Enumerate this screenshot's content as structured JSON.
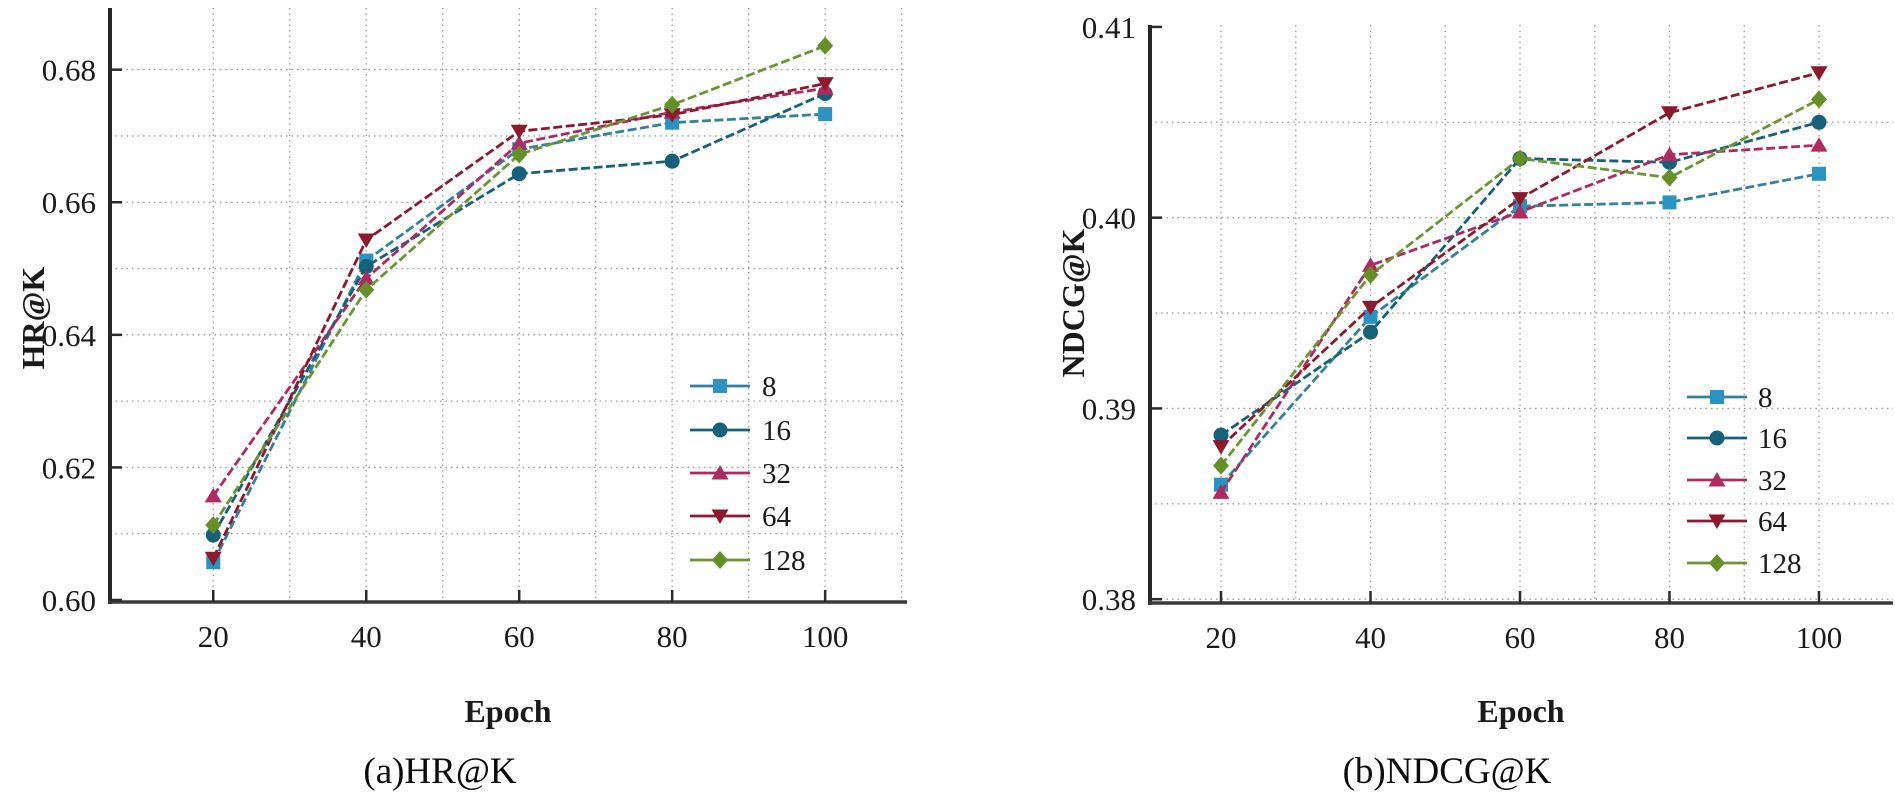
{
  "figure": {
    "background": "#ffffff",
    "text_color": "#1a1a1a",
    "grid_color": "#9a9a9a",
    "axis_color": "#3a3a3a"
  },
  "chart_data": [
    {
      "id": "hr",
      "type": "line",
      "caption": "(a)HR@K",
      "xlabel": "Epoch",
      "ylabel": "HR@K",
      "x": [
        20,
        40,
        60,
        80,
        100
      ],
      "xlim": [
        6.5,
        110.7
      ],
      "ylim": [
        0.5997,
        0.6893
      ],
      "xticks": [
        20,
        40,
        60,
        80,
        100
      ],
      "x_gridlines": [
        20,
        30,
        40,
        50,
        60,
        70,
        80,
        90,
        100,
        110
      ],
      "yticks": [
        {
          "value": 0.6,
          "label": "0.60"
        },
        {
          "value": 0.62,
          "label": "0.62"
        },
        {
          "value": 0.64,
          "label": "0.64"
        },
        {
          "value": 0.66,
          "label": "0.66"
        },
        {
          "value": 0.68,
          "label": "0.68"
        }
      ],
      "y_gridlines": [
        0.61,
        0.62,
        0.63,
        0.64,
        0.65,
        0.66,
        0.67,
        0.68
      ],
      "grid": true,
      "legend_position": "inside lower right",
      "series": [
        {
          "name": "8",
          "marker": "square",
          "color": "#2a93c1",
          "line_color": "#33809f",
          "values": [
            0.6057,
            0.6512,
            0.668,
            0.672,
            0.6733
          ]
        },
        {
          "name": "16",
          "marker": "circle",
          "color": "#16607a",
          "line_color": "#16607a",
          "values": [
            0.6098,
            0.6503,
            0.6643,
            0.6662,
            0.6764
          ]
        },
        {
          "name": "32",
          "marker": "triangle-up",
          "color": "#ad2b61",
          "line_color": "#ad2b61",
          "values": [
            0.6157,
            0.6485,
            0.6689,
            0.6736,
            0.6772
          ]
        },
        {
          "name": "64",
          "marker": "triangle-down",
          "color": "#8c1a2c",
          "line_color": "#8c1a2c",
          "values": [
            0.6063,
            0.6543,
            0.6707,
            0.6732,
            0.6779
          ]
        },
        {
          "name": "128",
          "marker": "diamond",
          "color": "#649027",
          "line_color": "#6b9432",
          "values": [
            0.6113,
            0.6468,
            0.6672,
            0.6747,
            0.6836
          ]
        }
      ]
    },
    {
      "id": "ndcg",
      "type": "line",
      "caption": "(b)NDCG@K",
      "xlabel": "Epoch",
      "ylabel": "NDCG@K",
      "x": [
        20,
        40,
        60,
        80,
        100
      ],
      "xlim": [
        10.5,
        109.9
      ],
      "ylim": [
        0.3798,
        0.4101
      ],
      "xticks": [
        20,
        40,
        60,
        80,
        100
      ],
      "x_gridlines": [
        20,
        30,
        40,
        50,
        60,
        70,
        80,
        90,
        100
      ],
      "yticks": [
        {
          "value": 0.38,
          "label": "0.38"
        },
        {
          "value": 0.39,
          "label": "0.39"
        },
        {
          "value": 0.4,
          "label": "0.40"
        },
        {
          "value": 0.41,
          "label": "0.41"
        }
      ],
      "y_gridlines": [
        0.38,
        0.385,
        0.39,
        0.395,
        0.4,
        0.405
      ],
      "grid": true,
      "legend_position": "inside lower right",
      "series": [
        {
          "name": "8",
          "marker": "square",
          "color": "#2a93c1",
          "line_color": "#33809f",
          "values": [
            0.386,
            0.3948,
            0.4006,
            0.4008,
            0.4023
          ]
        },
        {
          "name": "16",
          "marker": "circle",
          "color": "#16607a",
          "line_color": "#16607a",
          "values": [
            0.3886,
            0.394,
            0.4031,
            0.4029,
            0.405
          ]
        },
        {
          "name": "32",
          "marker": "triangle-up",
          "color": "#ad2b61",
          "line_color": "#ad2b61",
          "values": [
            0.3856,
            0.3975,
            0.4003,
            0.4033,
            0.4038
          ]
        },
        {
          "name": "64",
          "marker": "triangle-down",
          "color": "#8c1a2c",
          "line_color": "#8c1a2c",
          "values": [
            0.388,
            0.3953,
            0.401,
            0.4055,
            0.4076
          ]
        },
        {
          "name": "128",
          "marker": "diamond",
          "color": "#649027",
          "line_color": "#6b9432",
          "values": [
            0.387,
            0.397,
            0.4031,
            0.4021,
            0.4062
          ]
        }
      ]
    }
  ]
}
